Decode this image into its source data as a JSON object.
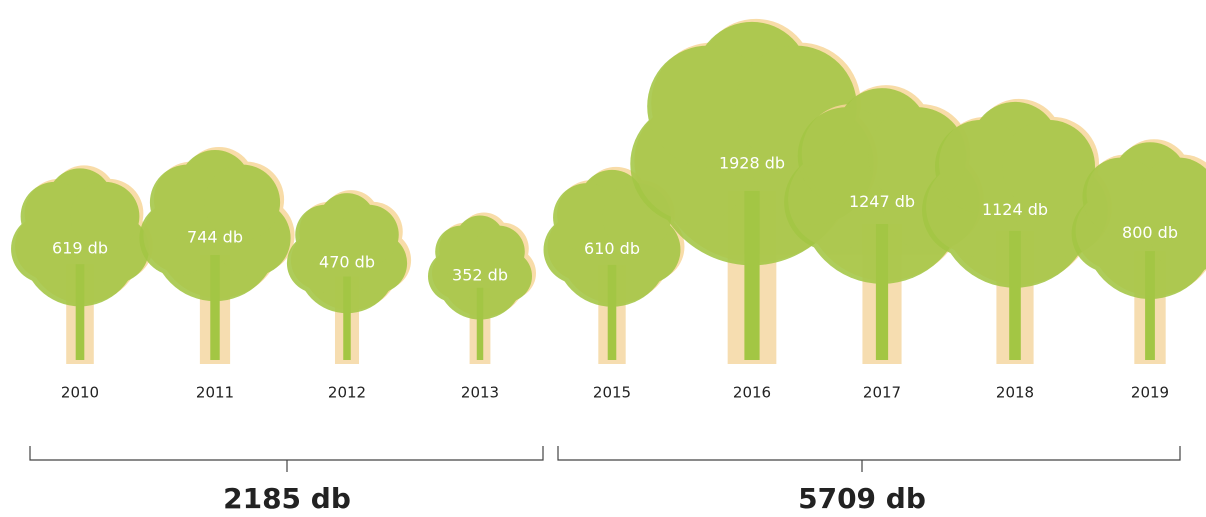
{
  "chart_data": {
    "type": "tree",
    "categories": [
      "2010",
      "2011",
      "2012",
      "2013",
      "2015",
      "2016",
      "2017",
      "2018",
      "2019"
    ],
    "values": [
      619,
      744,
      470,
      352,
      610,
      1928,
      1247,
      1124,
      800
    ],
    "value_labels": [
      "619 db",
      "744 db",
      "470 db",
      "352 db",
      "610 db",
      "1928 db",
      "1247 db",
      "1124 db",
      "800 db"
    ],
    "color": "#a3c644",
    "totals": [
      {
        "value": 2185,
        "label": "2185 db"
      },
      {
        "value": 5709,
        "label": "5709 db"
      }
    ]
  }
}
